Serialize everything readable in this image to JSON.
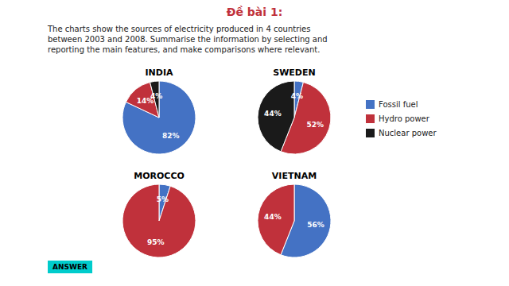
{
  "title": "Đề bài 1:",
  "subtitle": "The charts show the sources of electricity produced in 4 countries\nbetween 2003 and 2008. Summarise the information by selecting and\nreporting the main features, and make comparisons where relevant.",
  "annotations": [
    "ANSWER"
  ],
  "chart_data": [
    {
      "type": "pie",
      "title": "INDIA",
      "categories": [
        "Fossil fuel",
        "Hydro power",
        "Nuclear power"
      ],
      "values": [
        82,
        14,
        4
      ],
      "value_labels": [
        "82%",
        "14%",
        "4%"
      ],
      "colors": [
        "#4472c4",
        "#c0313b",
        "#1a1a1a"
      ],
      "data_labels": true,
      "legend": "right"
    },
    {
      "type": "pie",
      "title": "SWEDEN",
      "categories": [
        "Fossil fuel",
        "Hydro power",
        "Nuclear power"
      ],
      "values": [
        4,
        52,
        44
      ],
      "value_labels": [
        "4%",
        "52%",
        "44%"
      ],
      "colors": [
        "#4472c4",
        "#c0313b",
        "#1a1a1a"
      ],
      "data_labels": true
    },
    {
      "type": "pie",
      "title": "MOROCCO",
      "categories": [
        "Fossil fuel",
        "Hydro power"
      ],
      "values": [
        5,
        95
      ],
      "value_labels": [
        "5%",
        "95%"
      ],
      "colors": [
        "#4472c4",
        "#c0313b"
      ],
      "data_labels": true
    },
    {
      "type": "pie",
      "title": "VIETNAM",
      "categories": [
        "Fossil fuel",
        "Hydro power"
      ],
      "values": [
        56,
        44
      ],
      "value_labels": [
        "56%",
        "44%"
      ],
      "colors": [
        "#4472c4",
        "#c0313b"
      ],
      "data_labels": true
    }
  ]
}
